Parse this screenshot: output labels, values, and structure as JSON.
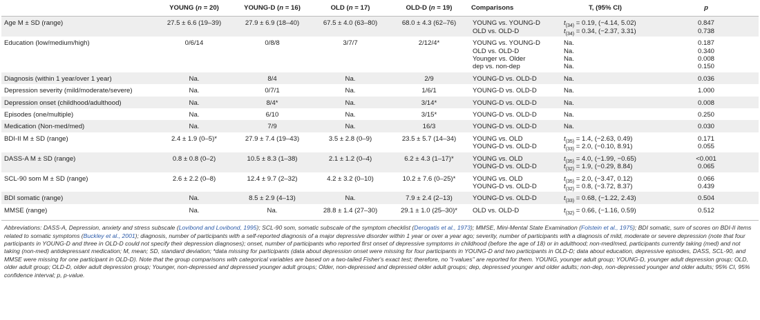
{
  "table": {
    "headers": [
      {
        "text": "",
        "n": ""
      },
      {
        "text": "YOUNG (",
        "n": "n",
        "rest": " = 20)"
      },
      {
        "text": "YOUNG-D (",
        "n": "n",
        "rest": " = 16)"
      },
      {
        "text": "OLD (",
        "n": "n",
        "rest": " = 17)"
      },
      {
        "text": "OLD-D (",
        "n": "n",
        "rest": " = 19)"
      },
      {
        "text": "Comparisons",
        "n": "",
        "rest": ""
      },
      {
        "text": "T, (95% CI)",
        "n": "",
        "rest": ""
      },
      {
        "text": "",
        "n": "p",
        "rest": ""
      }
    ],
    "groups": [
      {
        "shade": true,
        "rows": [
          {
            "var": "Age M ± SD (range)",
            "young": "27.5 ± 6.6 (19–39)",
            "youngd": "27.9 ± 6.9 (18–40)",
            "old": "67.5 ± 4.0 (63–80)",
            "oldd": "68.0 ± 4.3 (62–76)",
            "cmp": "YOUNG vs. YOUNG-D",
            "t_pre": "t",
            "t_sub": "(34)",
            "t_post": " = 0.19, (−4.14, 5.02)",
            "p": "0.847"
          },
          {
            "var": "",
            "young": "",
            "youngd": "",
            "old": "",
            "oldd": "",
            "cmp": "OLD vs. OLD-D",
            "t_pre": "t",
            "t_sub": "(34)",
            "t_post": " = 0.34, (−2.37, 3.31)",
            "p": "0.738"
          }
        ]
      },
      {
        "shade": false,
        "rows": [
          {
            "var": "Education (low/medium/high)",
            "young": "0/6/14",
            "youngd": "0/8/8",
            "old": "3/7/7",
            "oldd": "2/12/4*",
            "cmp": "YOUNG vs. YOUNG-D",
            "t_pre": "Na.",
            "t_sub": "",
            "t_post": "",
            "p": "0.187"
          },
          {
            "var": "",
            "young": "",
            "youngd": "",
            "old": "",
            "oldd": "",
            "cmp": "OLD vs. OLD-D",
            "t_pre": "Na.",
            "t_sub": "",
            "t_post": "",
            "p": "0.340"
          },
          {
            "var": "",
            "young": "",
            "youngd": "",
            "old": "",
            "oldd": "",
            "cmp": "Younger vs. Older",
            "t_pre": "Na.",
            "t_sub": "",
            "t_post": "",
            "p": "0.008"
          },
          {
            "var": "",
            "young": "",
            "youngd": "",
            "old": "",
            "oldd": "",
            "cmp": "dep vs. non-dep",
            "t_pre": "Na.",
            "t_sub": "",
            "t_post": "",
            "p": "0.150"
          }
        ]
      },
      {
        "shade": true,
        "rows": [
          {
            "var": "Diagnosis (within 1 year/over 1 year)",
            "young": "Na.",
            "youngd": "8/4",
            "old": "Na.",
            "oldd": "2/9",
            "cmp": "YOUNG-D vs. OLD-D",
            "t_pre": "Na.",
            "t_sub": "",
            "t_post": "",
            "p": "0.036"
          }
        ]
      },
      {
        "shade": false,
        "rows": [
          {
            "var": "Depression severity (mild/moderate/severe)",
            "young": "Na.",
            "youngd": "0/7/1",
            "old": "Na.",
            "oldd": "1/6/1",
            "cmp": "YOUNG-D vs. OLD-D",
            "t_pre": "Na.",
            "t_sub": "",
            "t_post": "",
            "p": "1.000"
          }
        ]
      },
      {
        "shade": true,
        "rows": [
          {
            "var": "Depression onset (childhood/adulthood)",
            "young": "Na.",
            "youngd": "8/4*",
            "old": "Na.",
            "oldd": "3/14*",
            "cmp": "YOUNG-D vs. OLD-D",
            "t_pre": "Na.",
            "t_sub": "",
            "t_post": "",
            "p": "0.008"
          }
        ]
      },
      {
        "shade": false,
        "rows": [
          {
            "var": "Episodes (one/multiple)",
            "young": "Na.",
            "youngd": "6/10",
            "old": "Na.",
            "oldd": "3/15*",
            "cmp": "YOUNG-D vs. OLD-D",
            "t_pre": "Na.",
            "t_sub": "",
            "t_post": "",
            "p": "0.250"
          }
        ]
      },
      {
        "shade": true,
        "rows": [
          {
            "var": "Medication (Non-med/med)",
            "young": "Na.",
            "youngd": "7/9",
            "old": "Na.",
            "oldd": "16/3",
            "cmp": "YOUNG-D vs. OLD-D",
            "t_pre": "Na.",
            "t_sub": "",
            "t_post": "",
            "p": "0.030"
          }
        ]
      },
      {
        "shade": false,
        "rows": [
          {
            "var": "BDI-II M ± SD (range)",
            "young": "2.4 ± 1.9 (0–5)*",
            "youngd": "27.9 ± 7.4 (19–43)",
            "old": "3.5 ± 2.8 (0–9)",
            "oldd": "23.5 ± 5.7 (14–34)",
            "cmp": "YOUNG vs. OLD",
            "t_pre": "t",
            "t_sub": "(35)",
            "t_post": " = 1.4, (−2.63, 0.49)",
            "p": "0.171"
          },
          {
            "var": "",
            "young": "",
            "youngd": "",
            "old": "",
            "oldd": "",
            "cmp": "YOUNG-D vs. OLD-D",
            "t_pre": "t",
            "t_sub": "(33)",
            "t_post": " = 2.0, (−0.10, 8.91)",
            "p": "0.055"
          }
        ]
      },
      {
        "shade": true,
        "rows": [
          {
            "var": "DASS-A M ± SD (range)",
            "young": "0.8 ± 0.8 (0–2)",
            "youngd": "10.5 ± 8.3 (1–38)",
            "old": "2.1 ± 1.2 (0–4)",
            "oldd": "6.2 ± 4.3 (1–17)*",
            "cmp": "YOUNG vs. OLD",
            "t_pre": "t",
            "t_sub": "(35)",
            "t_post": " = 4.0, (−1.99, −0.65)",
            "p": "<0.001"
          },
          {
            "var": "",
            "young": "",
            "youngd": "",
            "old": "",
            "oldd": "",
            "cmp": "YOUNG-D vs. OLD-D",
            "t_pre": "t",
            "t_sub": "(32)",
            "t_post": " = 1.9, (−0.29, 8.84)",
            "p": "0.065"
          }
        ]
      },
      {
        "shade": false,
        "rows": [
          {
            "var": "SCL-90 som M ± SD (range)",
            "young": "2.6 ± 2.2 (0–8)",
            "youngd": "12.4 ± 9.7 (2–32)",
            "old": "4.2 ± 3.2 (0–10)",
            "oldd": "10.2 ± 7.6 (0–25)*",
            "cmp": "YOUNG vs. OLD",
            "t_pre": "t",
            "t_sub": "(35)",
            "t_post": " = 2.0, (−3.47, 0.12)",
            "p": "0.066"
          },
          {
            "var": "",
            "young": "",
            "youngd": "",
            "old": "",
            "oldd": "",
            "cmp": "YOUNG-D vs. OLD-D",
            "t_pre": "t",
            "t_sub": "(32)",
            "t_post": " = 0.8, (−3.72, 8.37)",
            "p": "0.439"
          }
        ]
      },
      {
        "shade": true,
        "rows": [
          {
            "var": "BDI somatic (range)",
            "young": "Na.",
            "youngd": "8.5 ± 2.9 (4–13)",
            "old": "Na.",
            "oldd": "7.9 ± 2.4 (2–13)",
            "cmp": "YOUNG-D vs. OLD-D",
            "t_pre": "t",
            "t_sub": "(33)",
            "t_post": " = 0.68, (−1.22, 2.43)",
            "p": "0.504"
          }
        ]
      },
      {
        "shade": false,
        "rows": [
          {
            "var": "MMSE (range)",
            "young": "Na.",
            "youngd": "Na.",
            "old": "28.8 ± 1.4 (27–30)",
            "oldd": "29.1 ± 1.0 (25–30)*",
            "cmp": "OLD vs. OLD-D",
            "t_pre": "t",
            "t_sub": "(32)",
            "t_post": " = 0.66, (−1.16, 0.59)",
            "p": "0.512"
          }
        ]
      }
    ]
  },
  "notes": {
    "p1": "Abbreviations: DASS-A, Depression, anxiety and stress subscale (",
    "r1": "Lovibond and Lovibond, 1995",
    "p2": "); SCL-90 som, somatic subscale of the symptom checklist (",
    "r2": "Derogatis et al., 1973",
    "p3": "); MMSE, Mini-Mental State Examination (",
    "r3": "Folstein et al., 1975",
    "p4": "); BDI somatic, sum of scores on BDI-II items related to somatic symptoms (",
    "r4": "Buckley et al., 2001",
    "p5": "); diagnosis, number of participants with a self-reported diagnosis of a major depressive disorder within 1 year or over a year ago; severity, number of participants with a diagnosis of mild, moderate or severe depression (note that four participants in YOUNG-D and three in OLD-D could not specify their depression diagnoses); onset, number of participants who reported first onset of depressive symptoms in childhood (before the age of 18) or in adulthood; non-med/med, participants currently taking (med) and not taking (non-med) antidepressant medication; M, mean; SD, standard deviation; *data missing for participants (data about depression onset were missing for four participants in YOUNG-D and two participants in OLD-D; data about education, depressive episodes, DASS, SCL-90, and MMSE were missing for one participant in OLD-D). Note that the group comparisons with categorical variables are based on a two-tailed Fisher's exact test; therefore, no \"t-values\" are reported for them. YOUNG, younger adult group; YOUNG-D, younger adult depression group; OLD, older adult group; OLD-D, older adult depression group; Younger, non-depressed and depressed younger adult groups; Older, non-depressed and depressed older adult groups; dep, depressed younger and older adults; non-dep, non-depressed younger and older adults; 95% CI, 95% confidence interval; p, p-value."
  }
}
